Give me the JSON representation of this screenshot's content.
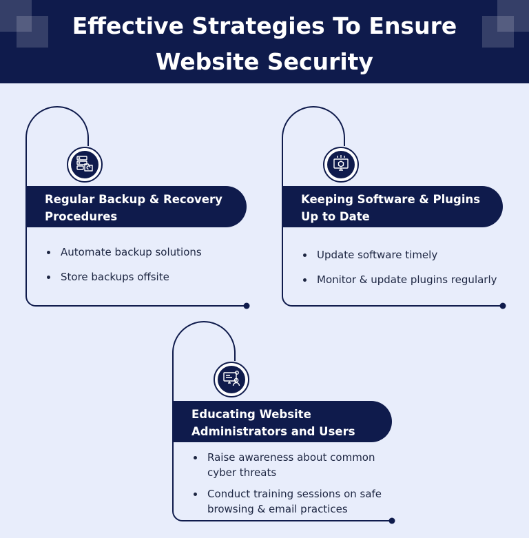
{
  "header": {
    "title_lines": [
      "Effective Strategies To Ensure",
      "Website Security"
    ]
  },
  "cards": [
    {
      "icon": "server-backup-icon",
      "heading_lines": [
        "Regular Backup & Recovery",
        "Procedures"
      ],
      "bullets": [
        [
          "Automate backup solutions"
        ],
        [
          "Store backups offsite"
        ]
      ]
    },
    {
      "icon": "software-update-icon",
      "heading_lines": [
        "Keeping Software & Plugins",
        "Up to Date"
      ],
      "bullets": [
        [
          "Update software timely"
        ],
        [
          "Monitor & update plugins regularly"
        ]
      ]
    },
    {
      "icon": "admin-training-icon",
      "heading_lines": [
        "Educating Website",
        "Administrators and Users"
      ],
      "bullets": [
        [
          "Raise awareness about common",
          "cyber threats"
        ],
        [
          "Conduct training sessions on safe",
          "browsing & email practices"
        ]
      ]
    }
  ],
  "colors": {
    "navy": "#0f1b4c",
    "background": "#e8edfb",
    "text": "#1c2541",
    "white": "#ffffff"
  }
}
